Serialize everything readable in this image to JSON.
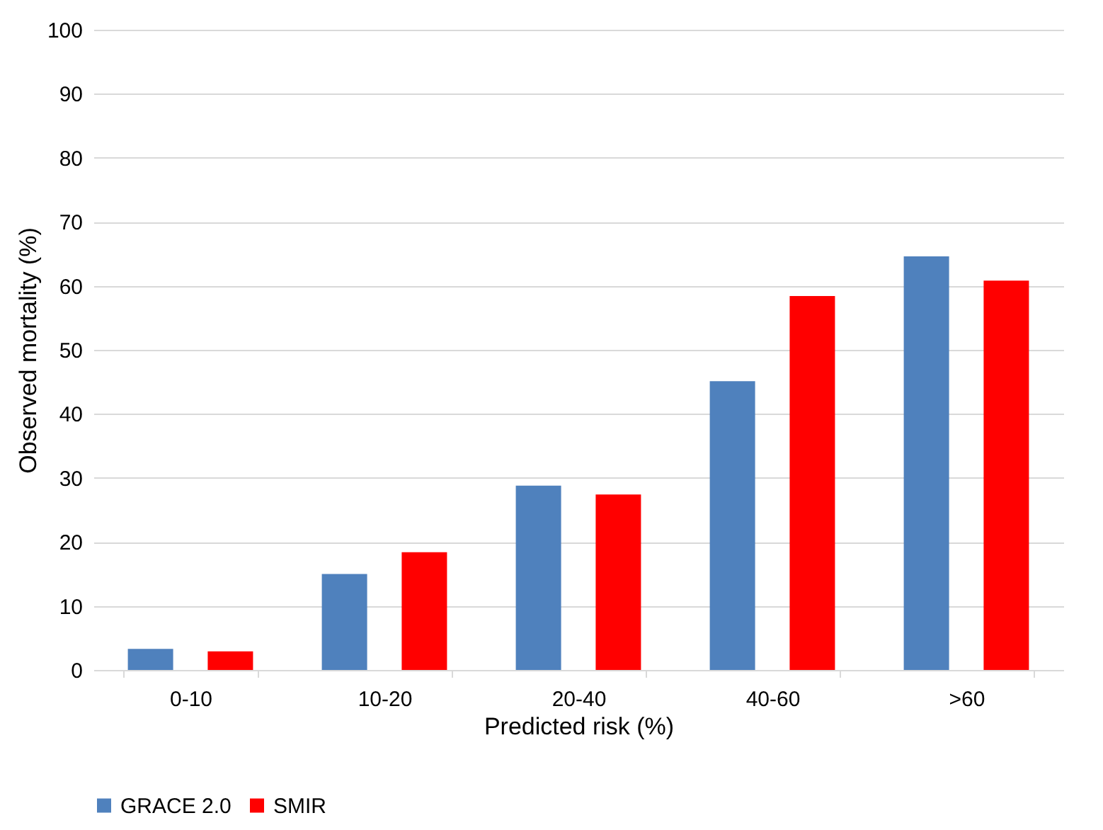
{
  "chart_data": {
    "type": "bar",
    "xlabel": "Predicted risk (%)",
    "ylabel": "Observed mortality (%)",
    "categories": [
      "0-10",
      "10-20",
      "20-40",
      "40-60",
      ">60"
    ],
    "series": [
      {
        "name": "GRACE 2.0",
        "color": "#4f81bd",
        "values": [
          3.3,
          15.0,
          28.8,
          45.1,
          64.6
        ]
      },
      {
        "name": "SMIR",
        "color": "#ff0000",
        "values": [
          2.9,
          18.4,
          27.4,
          58.4,
          60.8
        ]
      }
    ],
    "ylim": [
      0,
      100
    ],
    "yticks": [
      0,
      10,
      20,
      30,
      40,
      50,
      60,
      70,
      80,
      90,
      100
    ],
    "grid": "y",
    "legend": "bottom"
  }
}
